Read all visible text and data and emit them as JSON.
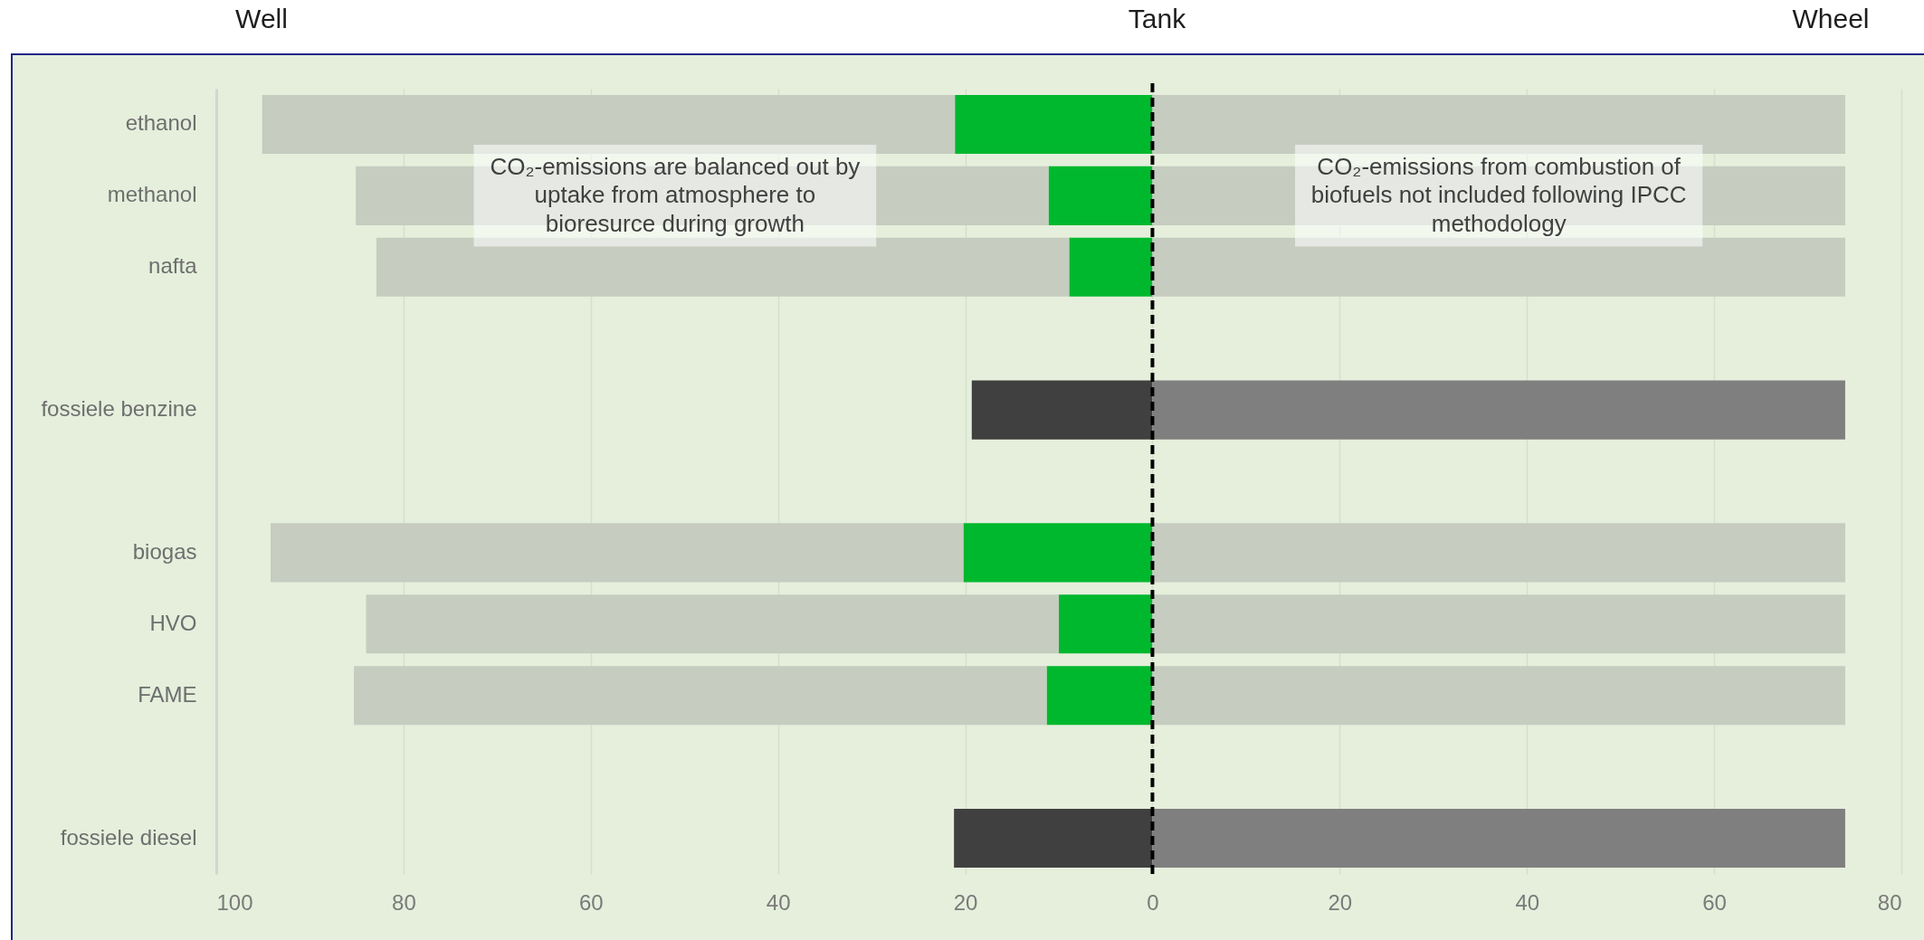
{
  "chart_data": {
    "type": "bar",
    "orientation": "horizontal",
    "stacked": true,
    "categories": [
      "ethanol",
      "methanol",
      "nafta",
      null,
      "fossiele benzine",
      null,
      "biogas",
      "HVO",
      "FAME",
      null,
      "fossiele diesel"
    ],
    "series": [
      {
        "colors": [
          "#00b82e",
          "#00b82e",
          "#00b82e",
          null,
          "#404040",
          null,
          "#00b82e",
          "#00b82e",
          "#00b82e",
          null,
          "#404040"
        ],
        "values": [
          -21.1,
          -11.1,
          -8.9,
          null,
          -19.3,
          null,
          -20.2,
          -10.0,
          -11.3,
          null,
          -21.2
        ]
      },
      {
        "color": "#c6ccc0",
        "values": [
          -74,
          -74,
          -74,
          null,
          null,
          null,
          -74,
          -74,
          -74,
          null,
          null
        ]
      },
      {
        "colors": [
          "#c6ccc0",
          "#c6ccc0",
          "#c6ccc0",
          null,
          "#7f7f7f",
          null,
          "#c6ccc0",
          "#c6ccc0",
          "#c6ccc0",
          null,
          "#7f7f7f"
        ],
        "values": [
          74,
          74,
          74,
          null,
          74,
          null,
          74,
          74,
          74,
          null,
          74
        ]
      }
    ],
    "xlim": [
      -100,
      80
    ],
    "xticks": [
      {
        "value": -100,
        "label": "100"
      },
      {
        "value": -80,
        "label": "80"
      },
      {
        "value": -60,
        "label": "60"
      },
      {
        "value": -40,
        "label": "40"
      },
      {
        "value": -20,
        "label": "20"
      },
      0,
      20,
      40,
      60,
      80
    ],
    "grid": "x",
    "ref_lines": [
      {
        "axis": "x",
        "value": 0,
        "color": "#000000",
        "line_style": "dashed",
        "label": "Tank"
      }
    ],
    "annotations": [
      "Well",
      "Wheel",
      {
        "text": "CO₂-emissions are balanced out by uptake from atmosphere to bioresurce during growth",
        "x": -51,
        "y": "methanol"
      },
      {
        "text": "CO₂-emissions from combustion of biofuels not included following IPCC methodology",
        "x": 37,
        "y": "methanol"
      }
    ]
  }
}
